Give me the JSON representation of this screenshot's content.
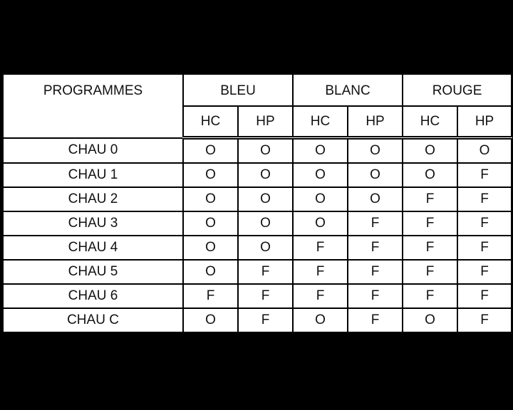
{
  "headers": {
    "programmes": "PROGRAMMES",
    "groups": [
      "BLEU",
      "BLANC",
      "ROUGE"
    ],
    "sub": [
      "HC",
      "HP",
      "HC",
      "HP",
      "HC",
      "HP"
    ]
  },
  "rows": [
    {
      "label": "CHAU 0",
      "values": [
        "O",
        "O",
        "O",
        "O",
        "O",
        "O"
      ]
    },
    {
      "label": "CHAU 1",
      "values": [
        "O",
        "O",
        "O",
        "O",
        "O",
        "F"
      ]
    },
    {
      "label": "CHAU 2",
      "values": [
        "O",
        "O",
        "O",
        "O",
        "F",
        "F"
      ]
    },
    {
      "label": "CHAU 3",
      "values": [
        "O",
        "O",
        "O",
        "F",
        "F",
        "F"
      ]
    },
    {
      "label": "CHAU 4",
      "values": [
        "O",
        "O",
        "F",
        "F",
        "F",
        "F"
      ]
    },
    {
      "label": "CHAU 5",
      "values": [
        "O",
        "F",
        "F",
        "F",
        "F",
        "F"
      ]
    },
    {
      "label": "CHAU 6",
      "values": [
        "F",
        "F",
        "F",
        "F",
        "F",
        "F"
      ]
    },
    {
      "label": "CHAU C",
      "values": [
        "O",
        "F",
        "O",
        "F",
        "O",
        "F"
      ]
    }
  ]
}
